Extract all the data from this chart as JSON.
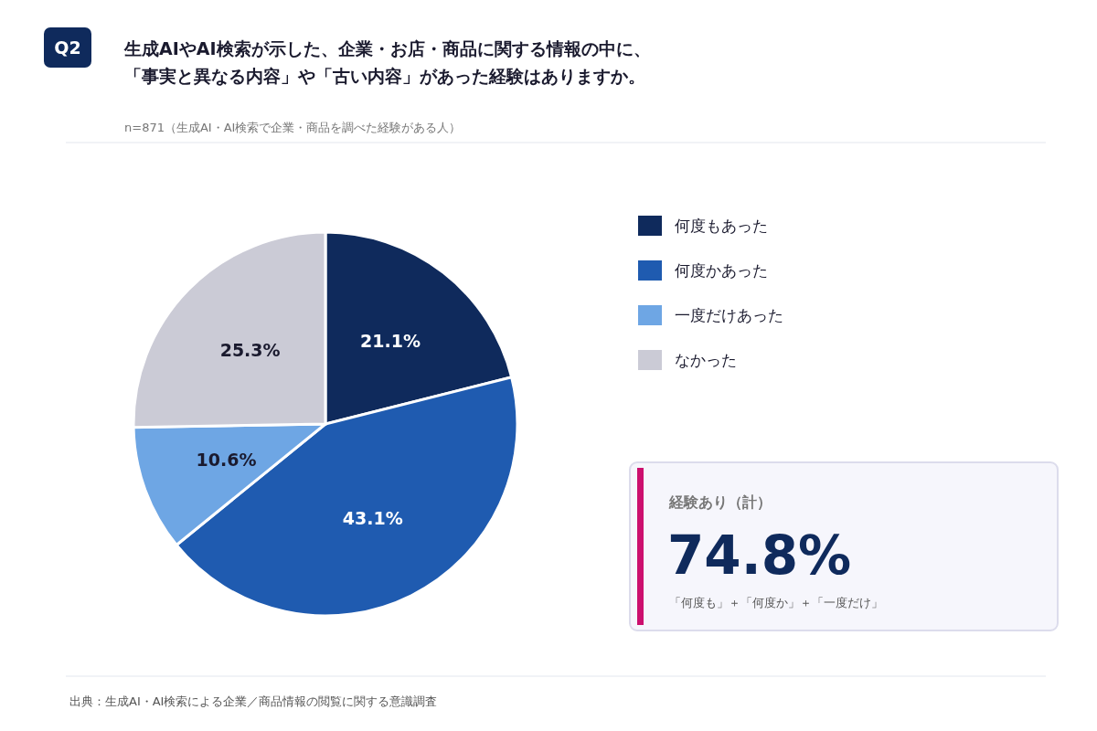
{
  "chart_data": {
    "type": "pie",
    "title": "生成AIやAI検索が示した、企業・お店・商品に関する情報の中に、「事実と異なる内容」や「古い内容」があった経験はありますか。",
    "subtitle": "n=871（生成AI・AI検索で企業・商品を調べた経験がある人）",
    "categories": [
      "何度もあった",
      "何度かあった",
      "一度だけあった",
      "なかった"
    ],
    "values": [
      21.1,
      43.1,
      10.6,
      25.3
    ],
    "colors": [
      "#0f2a5c",
      "#1f5bb0",
      "#6ea6e4",
      "#cbcbd6"
    ],
    "value_labels": [
      "21.1%",
      "43.1%",
      "10.6%",
      "25.3%"
    ],
    "legend": "right",
    "annotations": [
      "Q2",
      "経験あり（計）",
      "74.8%",
      "「何度も」＋「何度か」＋「一度だけ」",
      "出典：生成AI・AI検索による企業／商品情報の閲覧に関する意識調査"
    ]
  }
}
